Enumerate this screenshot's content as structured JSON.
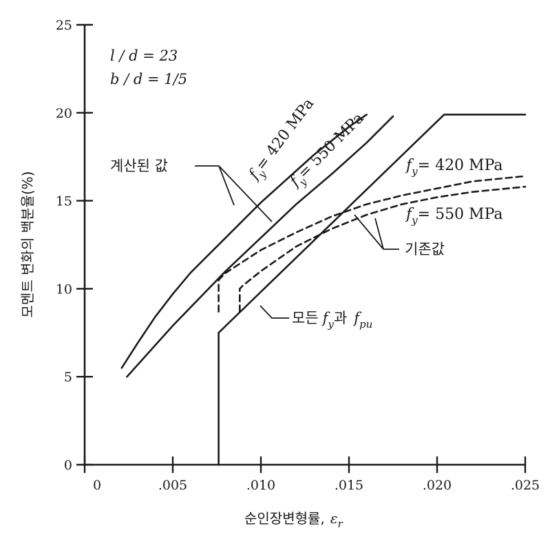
{
  "chart_data": {
    "type": "line",
    "title": "",
    "xlabel": "순인장변형률, ε_r",
    "ylabel": "모멘트 변화의 백분율(%)",
    "xlim": [
      0,
      0.025
    ],
    "ylim": [
      0,
      25
    ],
    "x_ticks": [
      0,
      0.005,
      0.01,
      0.015,
      0.02,
      0.025
    ],
    "x_tick_labels": [
      "0",
      ".005",
      ".010",
      ".015",
      ".020",
      ".025"
    ],
    "y_ticks": [
      0,
      5,
      10,
      15,
      20,
      25
    ],
    "y_tick_labels": [
      "0",
      "5",
      "10",
      "15",
      "20",
      "25"
    ],
    "grid": false,
    "parameters": [
      "l / d = 23",
      "b / d = 1/5"
    ],
    "series": [
      {
        "name": "f_y = 420 MPa",
        "group": "계산된 값",
        "style": "solid",
        "x": [
          0.0021,
          0.003,
          0.004,
          0.005,
          0.006,
          0.007,
          0.008,
          0.009,
          0.01,
          0.011,
          0.012,
          0.013,
          0.014,
          0.015,
          0.016
        ],
        "y": [
          5.5,
          6.9,
          8.4,
          9.7,
          10.9,
          11.9,
          12.9,
          13.9,
          14.9,
          15.8,
          16.7,
          17.6,
          18.4,
          19.2,
          19.9
        ]
      },
      {
        "name": "f_y = 550 MPa",
        "group": "계산된 값",
        "style": "solid",
        "x": [
          0.0024,
          0.005,
          0.008,
          0.01,
          0.012,
          0.014,
          0.016,
          0.0175
        ],
        "y": [
          5.0,
          7.9,
          11.0,
          12.9,
          14.8,
          16.5,
          18.3,
          19.8
        ]
      },
      {
        "name": "f_y = 420 MPa",
        "group": "기존값",
        "style": "dashed",
        "x": [
          0.0076,
          0.0076,
          0.008,
          0.01,
          0.012,
          0.014,
          0.016,
          0.018,
          0.02,
          0.022,
          0.025
        ],
        "y": [
          8.7,
          10.5,
          10.9,
          12.2,
          13.2,
          14.1,
          14.8,
          15.3,
          15.7,
          16.1,
          16.4
        ]
      },
      {
        "name": "f_y = 550 MPa",
        "group": "기존값",
        "style": "dashed",
        "x": [
          0.0088,
          0.0088,
          0.009,
          0.01,
          0.012,
          0.014,
          0.016,
          0.018,
          0.02,
          0.022,
          0.025
        ],
        "y": [
          8.7,
          10.0,
          10.2,
          11.0,
          12.4,
          13.4,
          14.2,
          14.8,
          15.2,
          15.5,
          15.8
        ]
      },
      {
        "name": "모든 f_y과 f_pu",
        "group": "",
        "style": "solid",
        "x": [
          0.0076,
          0.0076,
          0.0204,
          0.025
        ],
        "y": [
          0.0,
          7.5,
          19.9,
          19.9
        ]
      }
    ],
    "annotations": {
      "calculated": "계산된 값",
      "existing": "기존값",
      "all_fy_fpu": "모든 f_y과 f_pu"
    }
  },
  "labels": {
    "param_ld": "l / d = 23",
    "param_bd": "b / d = 1/5",
    "calc_label": "계산된 값",
    "exist_label": "기존값",
    "all_label_kor1": "모든",
    "all_label_kor2": "과",
    "fy_base": "f",
    "fy_sub": "y",
    "fpu_base": "f",
    "fpu_sub": "pu",
    "eq_420": "= 420 MPa",
    "eq_550": "= 550 MPa",
    "xlabel_text": "순인장변형률,",
    "xlabel_sym": "ε",
    "xlabel_sub": "r"
  }
}
